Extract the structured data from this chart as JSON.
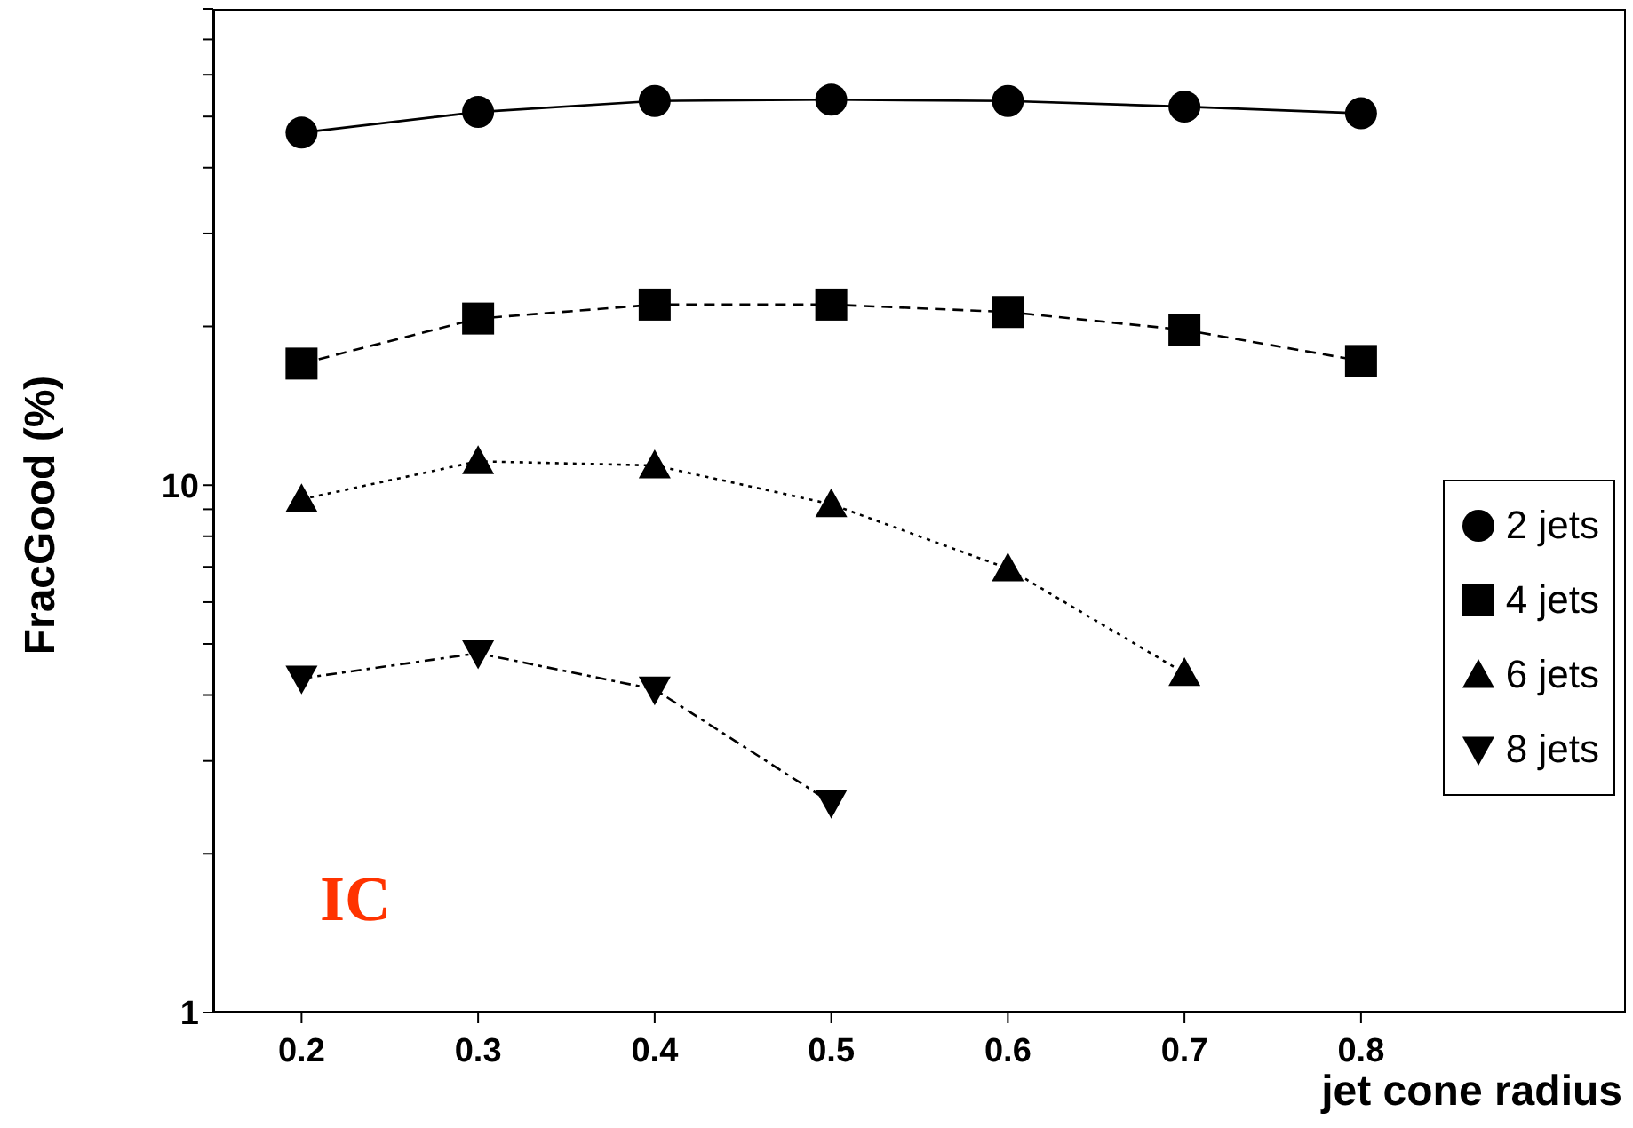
{
  "chart_data": {
    "type": "line",
    "xlabel": "jet cone radius",
    "ylabel": "FracGood (%)",
    "x": [
      0.2,
      0.3,
      0.4,
      0.5,
      0.6,
      0.7,
      0.8
    ],
    "series": [
      {
        "name": "2 jets",
        "color": "#000000",
        "marker": "circle",
        "line_style": "solid",
        "values": [
          46.6,
          51,
          53.5,
          53.8,
          53.5,
          52.2,
          50.7
        ]
      },
      {
        "name": "4 jets",
        "color": "#000000",
        "marker": "square",
        "line_style": "dashed",
        "values": [
          17,
          20.7,
          22,
          22,
          21.3,
          19.7,
          17.2
        ]
      },
      {
        "name": "6 jets",
        "color": "#000000",
        "marker": "triangle",
        "line_style": "dotted",
        "values": [
          9.4,
          11.1,
          10.9,
          9.2,
          6.95,
          4.4,
          null
        ]
      },
      {
        "name": "8 jets",
        "color": "#000000",
        "marker": "triangle-down",
        "line_style": "dashdot",
        "values": [
          4.3,
          4.8,
          4.1,
          2.5,
          null,
          null,
          null
        ]
      }
    ],
    "log": "y",
    "xlim": [
      0.15,
      0.95
    ],
    "ylim": [
      1,
      80
    ],
    "xticks": [
      0.2,
      0.3,
      0.4,
      0.5,
      0.6,
      0.7,
      0.8
    ],
    "yticks": [
      1,
      {
        "value": 2,
        "label": null
      },
      {
        "value": 3,
        "label": null
      },
      {
        "value": 4,
        "label": null
      },
      {
        "value": 5,
        "label": null
      },
      {
        "value": 6,
        "label": null
      },
      {
        "value": 7,
        "label": null
      },
      {
        "value": 8,
        "label": null
      },
      {
        "value": 9,
        "label": null
      },
      10,
      {
        "value": 20,
        "label": null
      },
      {
        "value": 30,
        "label": null
      },
      {
        "value": 40,
        "label": null
      },
      {
        "value": 50,
        "label": null
      },
      {
        "value": 60,
        "label": null
      },
      {
        "value": 70,
        "label": null
      },
      {
        "value": 80,
        "label": null
      }
    ],
    "grid": false,
    "legend": "right",
    "annotations": [
      "IC"
    ]
  }
}
